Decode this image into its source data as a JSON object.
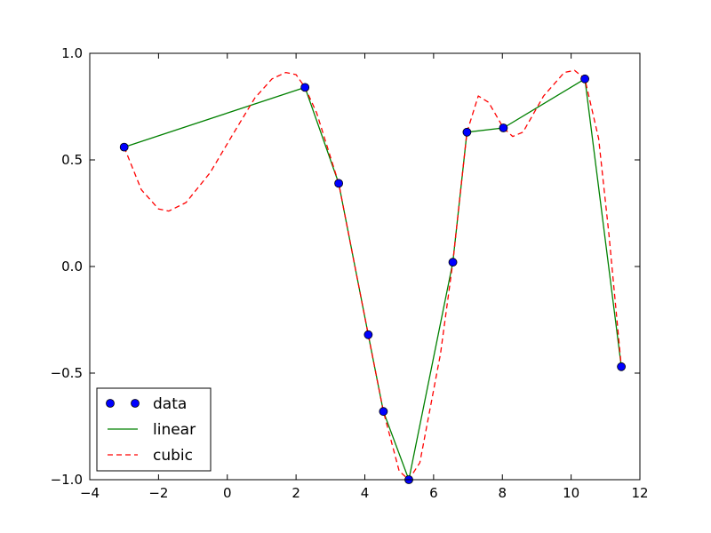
{
  "chart_data": {
    "type": "line",
    "title": "",
    "xlabel": "",
    "ylabel": "",
    "xlim": [
      -4,
      12
    ],
    "ylim": [
      -1.0,
      1.0
    ],
    "xticks": [
      -4,
      -2,
      0,
      2,
      4,
      6,
      8,
      10,
      12
    ],
    "xtick_labels": [
      "−4",
      "−2",
      "0",
      "2",
      "4",
      "6",
      "8",
      "10",
      "12"
    ],
    "yticks": [
      -1.0,
      -0.5,
      0.0,
      0.5,
      1.0
    ],
    "ytick_labels": [
      "−1.0",
      "−0.5",
      "0.0",
      "0.5",
      "1.0"
    ],
    "grid": false,
    "legend_position": "lower-left",
    "series": [
      {
        "name": "data",
        "style": "markers",
        "color": "#0000ff",
        "x": [
          -3.0,
          2.26,
          3.24,
          4.1,
          4.54,
          5.28,
          6.56,
          6.97,
          8.03,
          10.4,
          11.46
        ],
        "y": [
          0.56,
          0.84,
          0.39,
          -0.32,
          -0.68,
          -1.0,
          0.02,
          0.63,
          0.65,
          0.88,
          -0.47
        ]
      },
      {
        "name": "linear",
        "style": "solid",
        "color": "#008000",
        "x": [
          -3.0,
          2.26,
          3.24,
          4.1,
          4.54,
          5.28,
          6.56,
          6.97,
          8.03,
          10.4,
          11.46
        ],
        "y": [
          0.56,
          0.84,
          0.39,
          -0.32,
          -0.68,
          -1.0,
          0.02,
          0.63,
          0.65,
          0.88,
          -0.47
        ]
      },
      {
        "name": "cubic",
        "style": "dashed",
        "color": "#ff0000",
        "x": [
          -3.0,
          -2.5,
          -2.0,
          -1.7,
          -1.2,
          -0.5,
          0.2,
          0.8,
          1.3,
          1.7,
          2.0,
          2.26,
          2.6,
          3.24,
          4.1,
          4.54,
          5.0,
          5.28,
          5.6,
          6.2,
          6.56,
          6.97,
          7.3,
          7.6,
          8.03,
          8.3,
          8.6,
          9.2,
          9.8,
          10.1,
          10.4,
          10.8,
          11.1,
          11.46
        ],
        "y": [
          0.56,
          0.36,
          0.27,
          0.26,
          0.3,
          0.44,
          0.63,
          0.79,
          0.88,
          0.91,
          0.9,
          0.84,
          0.72,
          0.39,
          -0.32,
          -0.68,
          -0.96,
          -1.0,
          -0.92,
          -0.41,
          0.02,
          0.63,
          0.8,
          0.77,
          0.65,
          0.61,
          0.63,
          0.8,
          0.91,
          0.92,
          0.88,
          0.6,
          0.15,
          -0.47
        ]
      }
    ]
  }
}
